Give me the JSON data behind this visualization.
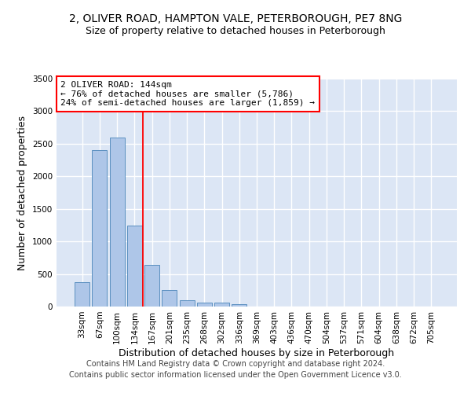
{
  "title_line1": "2, OLIVER ROAD, HAMPTON VALE, PETERBOROUGH, PE7 8NG",
  "title_line2": "Size of property relative to detached houses in Peterborough",
  "xlabel": "Distribution of detached houses by size in Peterborough",
  "ylabel": "Number of detached properties",
  "footer_line1": "Contains HM Land Registry data © Crown copyright and database right 2024.",
  "footer_line2": "Contains public sector information licensed under the Open Government Licence v3.0.",
  "bar_labels": [
    "33sqm",
    "67sqm",
    "100sqm",
    "134sqm",
    "167sqm",
    "201sqm",
    "235sqm",
    "268sqm",
    "302sqm",
    "336sqm",
    "369sqm",
    "403sqm",
    "436sqm",
    "470sqm",
    "504sqm",
    "537sqm",
    "571sqm",
    "604sqm",
    "638sqm",
    "672sqm",
    "705sqm"
  ],
  "bar_values": [
    380,
    2400,
    2600,
    1240,
    640,
    250,
    95,
    60,
    55,
    38,
    0,
    0,
    0,
    0,
    0,
    0,
    0,
    0,
    0,
    0,
    0
  ],
  "bar_color": "#aec6e8",
  "bar_edge_color": "#5a8fc0",
  "vline_x": 3.5,
  "vline_color": "red",
  "annotation_text": "2 OLIVER ROAD: 144sqm\n← 76% of detached houses are smaller (5,786)\n24% of semi-detached houses are larger (1,859) →",
  "annotation_box_color": "white",
  "annotation_box_edge": "red",
  "ylim": [
    0,
    3500
  ],
  "yticks": [
    0,
    500,
    1000,
    1500,
    2000,
    2500,
    3000,
    3500
  ],
  "background_color": "#dce6f5",
  "grid_color": "white",
  "title_fontsize": 10,
  "subtitle_fontsize": 9,
  "xlabel_fontsize": 9,
  "ylabel_fontsize": 9,
  "tick_fontsize": 7.5,
  "annotation_fontsize": 8,
  "footer_fontsize": 7
}
